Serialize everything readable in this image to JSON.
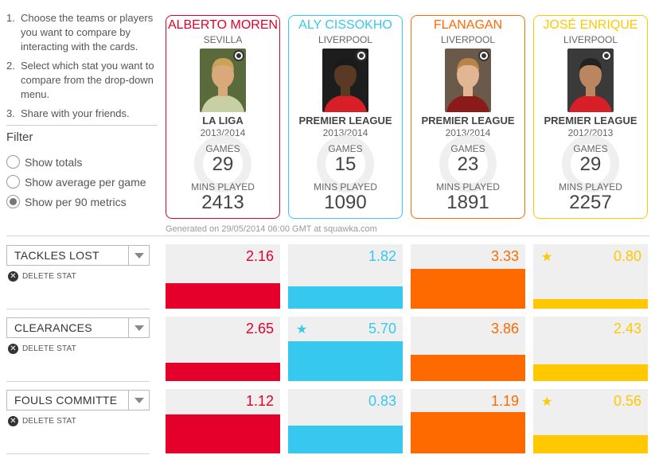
{
  "instructions": [
    {
      "num": "1.",
      "text": "Choose the teams or players you want to compare by interacting with the cards."
    },
    {
      "num": "2.",
      "text": "Select which stat you want to compare from the drop-down menu."
    },
    {
      "num": "3.",
      "text": "Share with your friends."
    }
  ],
  "filter": {
    "title": "Filter",
    "options": [
      {
        "label": "Show totals",
        "checked": false
      },
      {
        "label": "Show average per game",
        "checked": false
      },
      {
        "label": "Show per 90 metrics",
        "checked": true
      }
    ]
  },
  "players": [
    {
      "name": "ALBERTO MOREN",
      "club": "SEVILLA",
      "league": "LA LIGA",
      "season": "2013/2014",
      "games_label": "GAMES",
      "games": "29",
      "mins_label": "MINS PLAYED",
      "mins": "2413",
      "color": "#e4002b",
      "photo": "photo-1"
    },
    {
      "name": "ALY CISSOKHO",
      "club": "LIVERPOOL",
      "league": "PREMIER LEAGUE",
      "season": "2013/2014",
      "games_label": "GAMES",
      "games": "15",
      "mins_label": "MINS PLAYED",
      "mins": "1090",
      "color": "#37c8f0",
      "photo": "photo-2"
    },
    {
      "name": "FLANAGAN",
      "club": "LIVERPOOL",
      "league": "PREMIER LEAGUE",
      "season": "2013/2014",
      "games_label": "GAMES",
      "games": "23",
      "mins_label": "MINS PLAYED",
      "mins": "1891",
      "color": "#ff6a00",
      "photo": "photo-3"
    },
    {
      "name": "JOSÉ ENRIQUE",
      "club": "LIVERPOOL",
      "league": "PREMIER LEAGUE",
      "season": "2012/2013",
      "games_label": "GAMES",
      "games": "29",
      "mins_label": "MINS PLAYED",
      "mins": "2257",
      "color": "#ffc800",
      "photo": "photo-4"
    }
  ],
  "generated_text": "Generated on 29/05/2014 06:00 GMT at squawka.com",
  "delete_label": "DELETE STAT",
  "stats": [
    {
      "label": "TACKLES LOST",
      "values": [
        "2.16",
        "1.82",
        "3.33",
        "0.80"
      ],
      "fills": [
        0.4,
        0.34,
        0.62,
        0.15
      ],
      "star": [
        false,
        false,
        false,
        true
      ]
    },
    {
      "label": "CLEARANCES",
      "values": [
        "2.65",
        "5.70",
        "3.86",
        "2.43"
      ],
      "fills": [
        0.28,
        0.62,
        0.41,
        0.26
      ],
      "star": [
        false,
        true,
        false,
        false
      ]
    },
    {
      "label": "FOULS COMMITTE",
      "values": [
        "1.12",
        "0.83",
        "1.19",
        "0.56"
      ],
      "fills": [
        0.6,
        0.43,
        0.64,
        0.28
      ],
      "star": [
        false,
        false,
        false,
        true
      ]
    }
  ]
}
